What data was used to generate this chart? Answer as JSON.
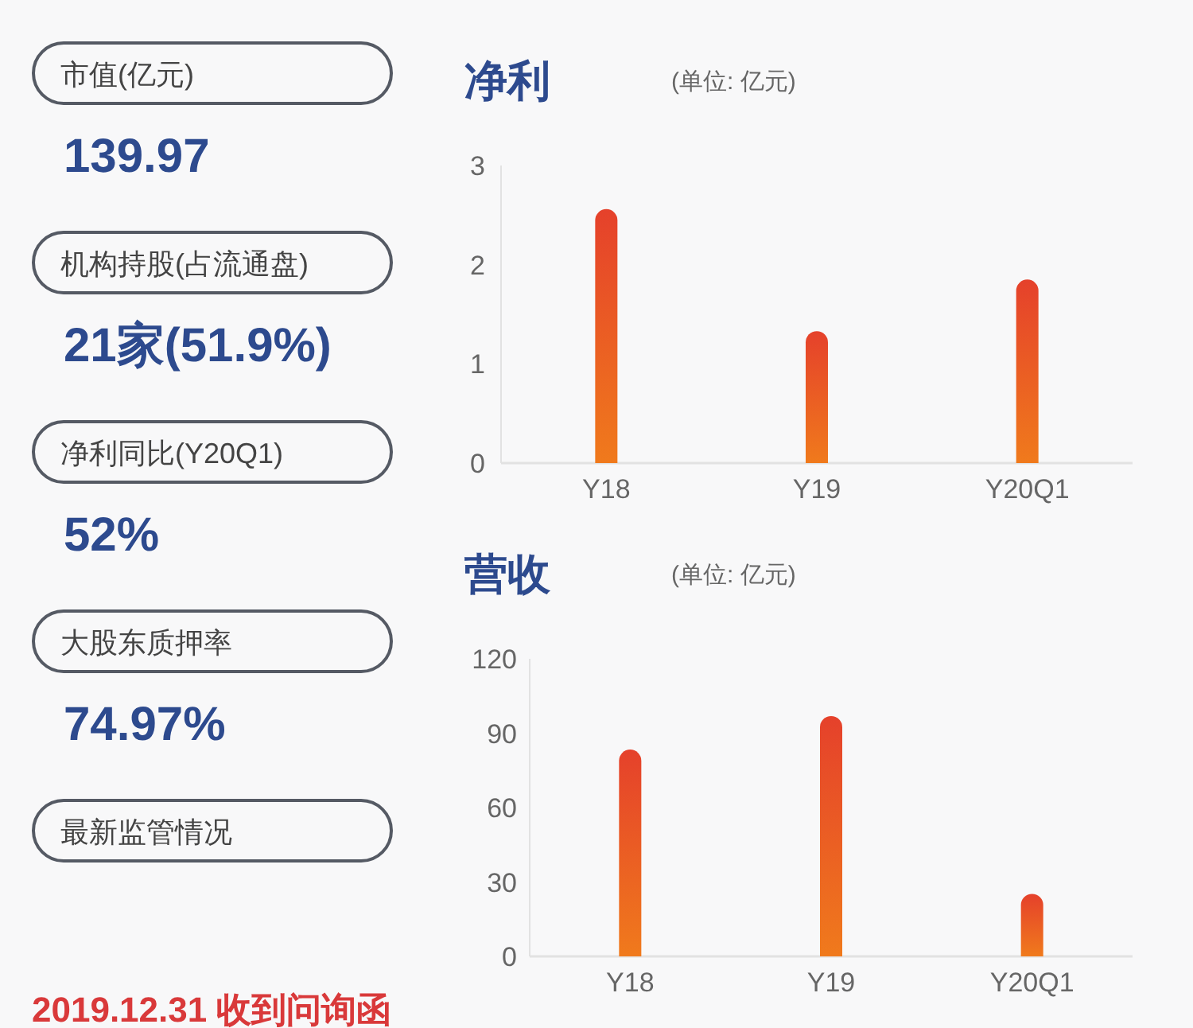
{
  "chart_data": [
    {
      "type": "other",
      "annotations": [
        "市值(亿元)",
        "139.97",
        "机构持股(占流通盘)",
        "21家(51.9%)",
        "净利同比(Y20Q1)",
        "52%",
        "大股东质押率",
        "74.97%",
        "最新监管情况",
        "2019.12.31 收到问询函"
      ]
    },
    {
      "type": "bar",
      "title": "净利",
      "subtitle": "(单位: 亿元)",
      "categories": [
        "Y18",
        "Y19",
        "Y20Q1"
      ],
      "values": [
        2.56,
        1.33,
        1.85
      ],
      "color": "#e5412b",
      "ylim": [
        0,
        3
      ],
      "yticks": [
        0,
        1,
        2,
        3
      ]
    },
    {
      "type": "bar",
      "title": "营收",
      "subtitle": "(单位: 亿元)",
      "categories": [
        "Y18",
        "Y19",
        "Y20Q1"
      ],
      "values": [
        83.4,
        96.9,
        25.2
      ],
      "color": "#e5412b",
      "ylim": [
        0,
        120
      ],
      "yticks": [
        0,
        30,
        60,
        90,
        120
      ]
    }
  ]
}
